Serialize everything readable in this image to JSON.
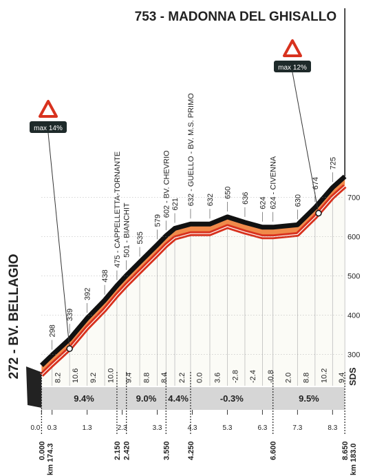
{
  "chart_data": {
    "type": "area",
    "x": [
      0,
      0.3,
      0.8,
      1.3,
      1.8,
      2.15,
      2.42,
      2.8,
      3.3,
      3.55,
      3.8,
      4.25,
      4.8,
      5.3,
      5.8,
      6.3,
      6.6,
      7.3,
      7.8,
      8.3,
      8.65
    ],
    "values": [
      272,
      298,
      339,
      392,
      438,
      475,
      501,
      535,
      579,
      602,
      621,
      632,
      632,
      650,
      636,
      624,
      624,
      630,
      674,
      725,
      753
    ],
    "value_labels": [
      "272 - BV. BELLAGIO",
      "298",
      "339",
      "392",
      "438",
      "475 - CAPPELLETTA-TORNANTE",
      "501 - BIANCHIT",
      "535",
      "579",
      "602 - BV. CHEVRIO",
      "621",
      "632 - GUELLO - BV. M.S. PRIMO",
      "632",
      "650",
      "636",
      "624",
      "624 - CIVENNA",
      "630",
      "674",
      "725",
      "753 - MADONNA DEL GHISALLO"
    ],
    "color": "#d8321e",
    "line_color": "#111111",
    "xlim": [
      -0.4,
      9.0
    ],
    "ylim": [
      220,
      1150
    ],
    "yticks": [
      300,
      400,
      500,
      600,
      700
    ],
    "xticks": [
      {
        "value": 0,
        "label": "0.0"
      },
      0.3,
      1.3,
      2.3,
      3.3,
      4.3,
      5.3,
      6.3,
      7.3,
      8.3
    ],
    "gradients": [
      "8.2",
      "10.6",
      "9.2",
      "10.0",
      "9.4",
      "8.8",
      "8.4",
      "2.2",
      "0.0",
      "3.6",
      "-2.8",
      "-2.4",
      "-0.8",
      "2.0",
      "8.8",
      "10.2",
      "9.4"
    ],
    "sectors": [
      "9.4%",
      "9.0%",
      "4.4%",
      "-0.3%",
      "9.5%"
    ],
    "distance_marks": [
      {
        "value": 0,
        "label": "0.000"
      },
      {
        "value": 2.15,
        "label": "2.150"
      },
      {
        "value": 2.42,
        "label": "2.420"
      },
      {
        "value": 3.55,
        "label": "3.550"
      },
      {
        "value": 4.25,
        "label": "4.250"
      },
      {
        "value": 6.6,
        "label": "6.600"
      },
      {
        "value": 8.65,
        "label": "8.650"
      }
    ],
    "km_start": "km 174.3",
    "km_end": "km 183.0",
    "max_gradients": [
      {
        "label": "max 14%",
        "x": 0.8
      },
      {
        "label": "max 12%",
        "x": 7.9
      }
    ],
    "logo": "SDS"
  }
}
